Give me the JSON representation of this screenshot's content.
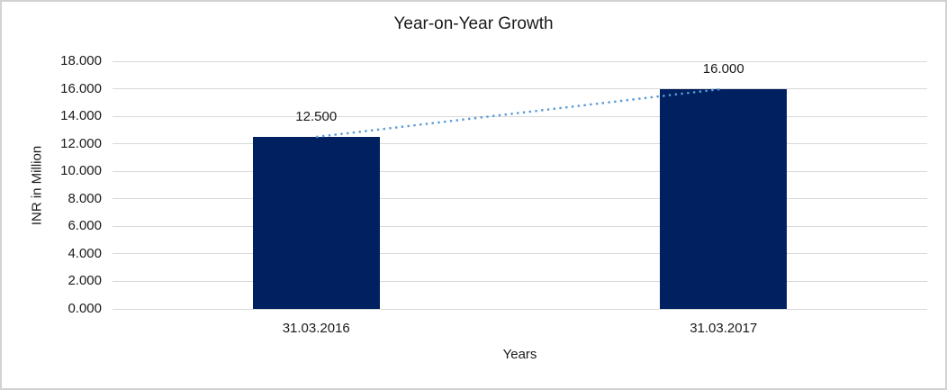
{
  "chart": {
    "title": "Year-on-Year Growth",
    "xlabel": "Years",
    "ylabel": "INR in Million"
  },
  "chart_data": {
    "type": "bar",
    "title": "Year-on-Year Growth",
    "xlabel": "Years",
    "ylabel": "INR in Million",
    "categories": [
      "31.03.2016",
      "31.03.2017"
    ],
    "series": [
      {
        "name": "INR in Million",
        "type": "bar",
        "values": [
          12500,
          16000
        ],
        "data_labels": [
          "12.500",
          "16.000"
        ],
        "color": "#002060"
      },
      {
        "name": "Trend",
        "type": "line",
        "values": [
          12500,
          16000
        ],
        "color": "#5b9bd5",
        "line_style": "dotted"
      }
    ],
    "ylim": [
      0,
      18000
    ],
    "ytick_interval": 2000,
    "ytick_labels": [
      "0.000",
      "2.000",
      "4.000",
      "6.000",
      "8.000",
      "10.000",
      "12.000",
      "14.000",
      "16.000",
      "18.000"
    ],
    "grid": true,
    "legend_position": "none",
    "colors": {
      "bar": "#002060",
      "trendline": "#5b9bd5",
      "gridline": "#d9d9d9",
      "frame_border": "#d2d2d2",
      "text": "#1a1a1a"
    }
  }
}
